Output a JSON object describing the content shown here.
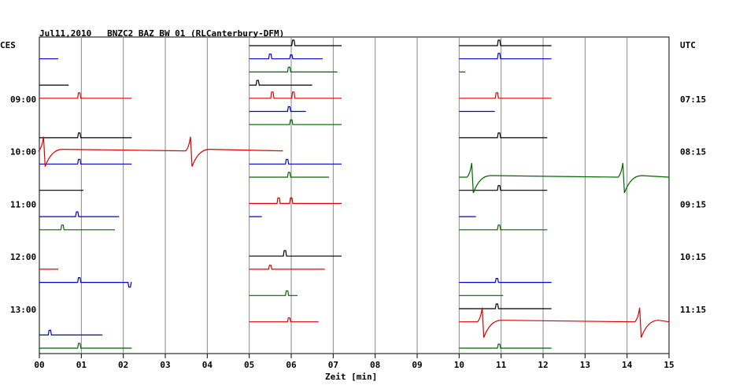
{
  "chart_data": {
    "type": "line",
    "title": "Jul11,2010   BNZC2 BAZ BW 01 (RLCanterbury-DFM)",
    "left_axis_label": "CES",
    "right_axis_label": "UTC",
    "xlabel": "Zeit [min]",
    "xlim": [
      0,
      15
    ],
    "x_ticks": [
      "00",
      "01",
      "02",
      "03",
      "04",
      "05",
      "06",
      "07",
      "08",
      "09",
      "10",
      "11",
      "12",
      "13",
      "14",
      "15"
    ],
    "time_labels_left": [
      "09:00",
      "10:00",
      "11:00",
      "12:00",
      "13:00"
    ],
    "time_labels_right": [
      "07:15",
      "08:15",
      "09:15",
      "10:15",
      "11:15"
    ],
    "grid": true,
    "colors": {
      "black": "#000000",
      "blue": "#0000cc",
      "red": "#dd0000",
      "green": "#006600",
      "grid": "#888888"
    },
    "trace_row_count": 24,
    "traces": [
      {
        "row": 0,
        "color": "black",
        "segments": [
          [
            5.0,
            7.2
          ]
        ],
        "spikes": [
          [
            6.05,
            "up",
            7
          ]
        ]
      },
      {
        "row": 0,
        "color": "black",
        "segments": [
          [
            10.0,
            12.2
          ]
        ],
        "spikes": [
          [
            10.95,
            "up",
            7
          ]
        ]
      },
      {
        "row": 1,
        "color": "blue",
        "segments": [
          [
            0.0,
            0.45
          ]
        ]
      },
      {
        "row": 1,
        "color": "blue",
        "segments": [
          [
            5.0,
            6.75
          ]
        ],
        "spikes": [
          [
            5.5,
            "up",
            6
          ],
          [
            6.0,
            "up",
            5
          ]
        ]
      },
      {
        "row": 1,
        "color": "blue",
        "segments": [
          [
            10.0,
            12.2
          ]
        ],
        "spikes": [
          [
            10.95,
            "up",
            7
          ]
        ]
      },
      {
        "row": 2,
        "color": "green",
        "segments": [
          [
            5.0,
            7.1
          ]
        ],
        "spikes": [
          [
            5.95,
            "up",
            6
          ]
        ]
      },
      {
        "row": 2,
        "color": "green",
        "segments": [
          [
            10.0,
            10.15
          ]
        ]
      },
      {
        "row": 3,
        "color": "black",
        "segments": [
          [
            0.0,
            0.7
          ]
        ]
      },
      {
        "row": 3,
        "color": "black",
        "segments": [
          [
            5.0,
            6.5
          ]
        ],
        "spikes": [
          [
            5.2,
            "up",
            6
          ]
        ]
      },
      {
        "row": 4,
        "color": "red",
        "segments": [
          [
            0.0,
            2.2
          ]
        ],
        "spikes": [
          [
            0.95,
            "up",
            7
          ]
        ]
      },
      {
        "row": 4,
        "color": "red",
        "segments": [
          [
            5.0,
            7.2
          ]
        ],
        "spikes": [
          [
            5.55,
            "up",
            8
          ],
          [
            6.05,
            "up",
            8
          ]
        ]
      },
      {
        "row": 4,
        "color": "red",
        "segments": [
          [
            10.0,
            12.2
          ]
        ],
        "spikes": [
          [
            10.9,
            "up",
            7
          ]
        ]
      },
      {
        "row": 5,
        "color": "blue",
        "segments": [
          [
            5.0,
            6.35
          ]
        ],
        "spikes": [
          [
            5.95,
            "up",
            6
          ]
        ]
      },
      {
        "row": 5,
        "color": "blue",
        "segments": [
          [
            10.0,
            10.85
          ]
        ]
      },
      {
        "row": 6,
        "color": "green",
        "segments": [
          [
            5.0,
            7.2
          ]
        ],
        "spikes": [
          [
            6.0,
            "up",
            6
          ]
        ]
      },
      {
        "row": 7,
        "color": "black",
        "segments": [
          [
            0.0,
            2.2
          ]
        ],
        "spikes": [
          [
            0.95,
            "up",
            6
          ]
        ]
      },
      {
        "row": 7,
        "color": "black",
        "segments": [
          [
            10.0,
            12.1
          ]
        ],
        "spikes": [
          [
            10.95,
            "up",
            6
          ]
        ]
      },
      {
        "row": 9,
        "color": "blue",
        "segments": [
          [
            0.0,
            2.2
          ]
        ],
        "spikes": [
          [
            0.95,
            "up",
            6
          ]
        ]
      },
      {
        "row": 9,
        "color": "blue",
        "segments": [
          [
            5.0,
            7.2
          ]
        ],
        "spikes": [
          [
            5.9,
            "up",
            6
          ]
        ]
      },
      {
        "row": 10,
        "color": "green",
        "segments": [
          [
            5.0,
            6.9
          ]
        ],
        "spikes": [
          [
            5.95,
            "up",
            6
          ]
        ]
      },
      {
        "row": 11,
        "color": "black",
        "segments": [
          [
            0.0,
            1.05
          ]
        ]
      },
      {
        "row": 11,
        "color": "black",
        "segments": [
          [
            10.0,
            12.1
          ]
        ],
        "spikes": [
          [
            10.95,
            "up",
            6
          ]
        ]
      },
      {
        "row": 12,
        "color": "red",
        "segments": [
          [
            5.0,
            7.2
          ]
        ],
        "spikes": [
          [
            5.7,
            "up",
            7
          ],
          [
            6.0,
            "up",
            7
          ]
        ]
      },
      {
        "row": 13,
        "color": "blue",
        "segments": [
          [
            0.0,
            1.9
          ]
        ],
        "spikes": [
          [
            0.9,
            "up",
            6
          ]
        ]
      },
      {
        "row": 13,
        "color": "blue",
        "segments": [
          [
            5.0,
            5.3
          ]
        ]
      },
      {
        "row": 13,
        "color": "blue",
        "segments": [
          [
            10.0,
            10.4
          ]
        ]
      },
      {
        "row": 14,
        "color": "green",
        "segments": [
          [
            0.0,
            1.8
          ]
        ],
        "spikes": [
          [
            0.55,
            "up",
            6
          ]
        ]
      },
      {
        "row": 14,
        "color": "green",
        "segments": [
          [
            10.0,
            12.1
          ]
        ],
        "spikes": [
          [
            10.95,
            "up",
            6
          ]
        ]
      },
      {
        "row": 16,
        "color": "black",
        "segments": [
          [
            5.0,
            7.2
          ]
        ],
        "spikes": [
          [
            5.85,
            "up",
            7
          ]
        ]
      },
      {
        "row": 17,
        "color": "red",
        "segments": [
          [
            0.0,
            0.45
          ]
        ]
      },
      {
        "row": 17,
        "color": "red",
        "segments": [
          [
            5.0,
            6.8
          ]
        ],
        "spikes": [
          [
            5.5,
            "up",
            5
          ]
        ]
      },
      {
        "row": 18,
        "color": "blue",
        "segments": [
          [
            0.0,
            2.2
          ]
        ],
        "spikes": [
          [
            0.95,
            "up",
            6
          ],
          [
            2.15,
            "down",
            6
          ]
        ]
      },
      {
        "row": 18,
        "color": "blue",
        "segments": [
          [
            10.0,
            12.2
          ]
        ],
        "spikes": [
          [
            10.9,
            "up",
            5
          ]
        ]
      },
      {
        "row": 19,
        "color": "green",
        "segments": [
          [
            5.0,
            6.15
          ]
        ],
        "spikes": [
          [
            5.9,
            "up",
            6
          ]
        ]
      },
      {
        "row": 19,
        "color": "green",
        "segments": [
          [
            10.0,
            11.05
          ]
        ]
      },
      {
        "row": 20,
        "color": "black",
        "segments": [
          [
            10.0,
            12.2
          ]
        ],
        "spikes": [
          [
            10.9,
            "up",
            6
          ]
        ]
      },
      {
        "row": 21,
        "color": "red",
        "segments": [
          [
            5.0,
            6.65
          ]
        ],
        "spikes": [
          [
            5.95,
            "up",
            5
          ]
        ]
      },
      {
        "row": 22,
        "color": "blue",
        "segments": [
          [
            0.0,
            1.5
          ]
        ],
        "spikes": [
          [
            0.25,
            "up",
            6
          ]
        ]
      },
      {
        "row": 23,
        "color": "green",
        "segments": [
          [
            0.0,
            2.2
          ]
        ],
        "spikes": [
          [
            0.95,
            "up",
            6
          ]
        ]
      },
      {
        "row": 23,
        "color": "green",
        "segments": [
          [
            10.0,
            12.2
          ]
        ],
        "spikes": [
          [
            10.95,
            "up",
            5
          ]
        ]
      }
    ],
    "events": [
      {
        "row": 8,
        "color": "red",
        "x_start": 0.0,
        "x_end": 5.8,
        "surges": [
          0.1,
          3.6
        ]
      },
      {
        "row": 10,
        "color": "green",
        "x_start": 10.0,
        "x_end": 15.0,
        "surges": [
          10.3,
          13.9
        ]
      },
      {
        "row": 21,
        "color": "red",
        "x_start": 10.0,
        "x_end": 15.0,
        "surges": [
          10.55,
          14.3
        ]
      }
    ]
  }
}
